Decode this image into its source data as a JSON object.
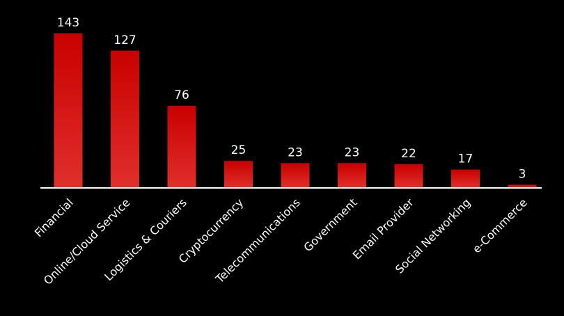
{
  "chart_data": {
    "type": "bar",
    "title": "",
    "xlabel": "",
    "ylabel": "",
    "categories": [
      "Financial",
      "Online/Cloud Service",
      "Logistics & Couriers",
      "Cryptocurrency",
      "Telecommunications",
      "Government",
      "Email Provider",
      "Social Networking",
      "e-Commerce"
    ],
    "values": [
      143,
      127,
      76,
      25,
      23,
      23,
      22,
      17,
      3
    ],
    "ylim": [
      0,
      143
    ],
    "grid": false,
    "legend": "none",
    "colors": {
      "background": "#000000",
      "bar_top": "#c80000",
      "bar_bottom": "#e0302a",
      "axis": "#ffffff",
      "text": "#ffffff"
    }
  }
}
